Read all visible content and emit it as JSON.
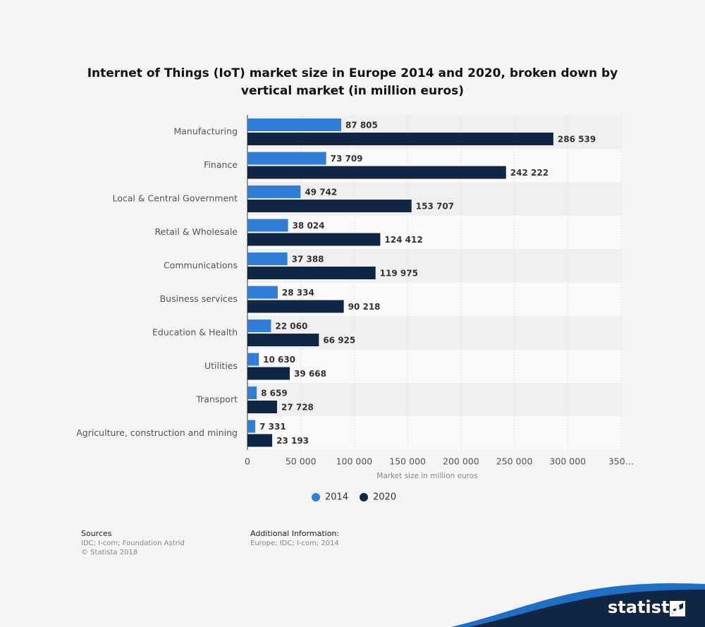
{
  "chart_data": {
    "type": "bar",
    "orientation": "horizontal",
    "title": "Internet of Things (IoT) market size in Europe 2014 and 2020, broken down by vertical market (in million euros)",
    "categories": [
      "Manufacturing",
      "Finance",
      "Local & Central Government",
      "Retail & Wholesale",
      "Communications",
      "Business services",
      "Education & Health",
      "Utilities",
      "Transport",
      "Agriculture, construction and mining"
    ],
    "series": [
      {
        "name": "2014",
        "color": "#2f7ed8",
        "values": [
          87805,
          73709,
          49742,
          38024,
          37388,
          28334,
          22060,
          10630,
          8659,
          7331
        ],
        "value_labels": [
          "87 805",
          "73 709",
          "49 742",
          "38 024",
          "37 388",
          "28 334",
          "22 060",
          "10 630",
          "8 659",
          "7 331"
        ]
      },
      {
        "name": "2020",
        "color": "#0f2744",
        "values": [
          286539,
          242222,
          153707,
          124412,
          119975,
          90218,
          66925,
          39668,
          27728,
          23193
        ],
        "value_labels": [
          "286 539",
          "242 222",
          "153 707",
          "124 412",
          "119 975",
          "90 218",
          "66 925",
          "39 668",
          "27 728",
          "23 193"
        ]
      }
    ],
    "xlabel": "Market size in million euros",
    "xlim": [
      0,
      350000
    ],
    "xticks": [
      0,
      {
        "value": 50000,
        "label": "50 000"
      },
      {
        "value": 100000,
        "label": "100 000"
      },
      {
        "value": 150000,
        "label": "150 000"
      },
      {
        "value": 200000,
        "label": "200 000"
      },
      {
        "value": 250000,
        "label": "250 000"
      },
      {
        "value": 300000,
        "label": "300 000"
      },
      {
        "value": 350000,
        "label": "350…"
      }
    ],
    "grid": true,
    "legend": "bottom"
  },
  "footer": {
    "sources_heading": "Sources",
    "sources": [
      "IDC; I-com; Foundation Astrid",
      "© Statista 2018"
    ],
    "info_heading": "Additional Information:",
    "info": "Europe; IDC; I-com; 2014"
  },
  "brand": "statista"
}
